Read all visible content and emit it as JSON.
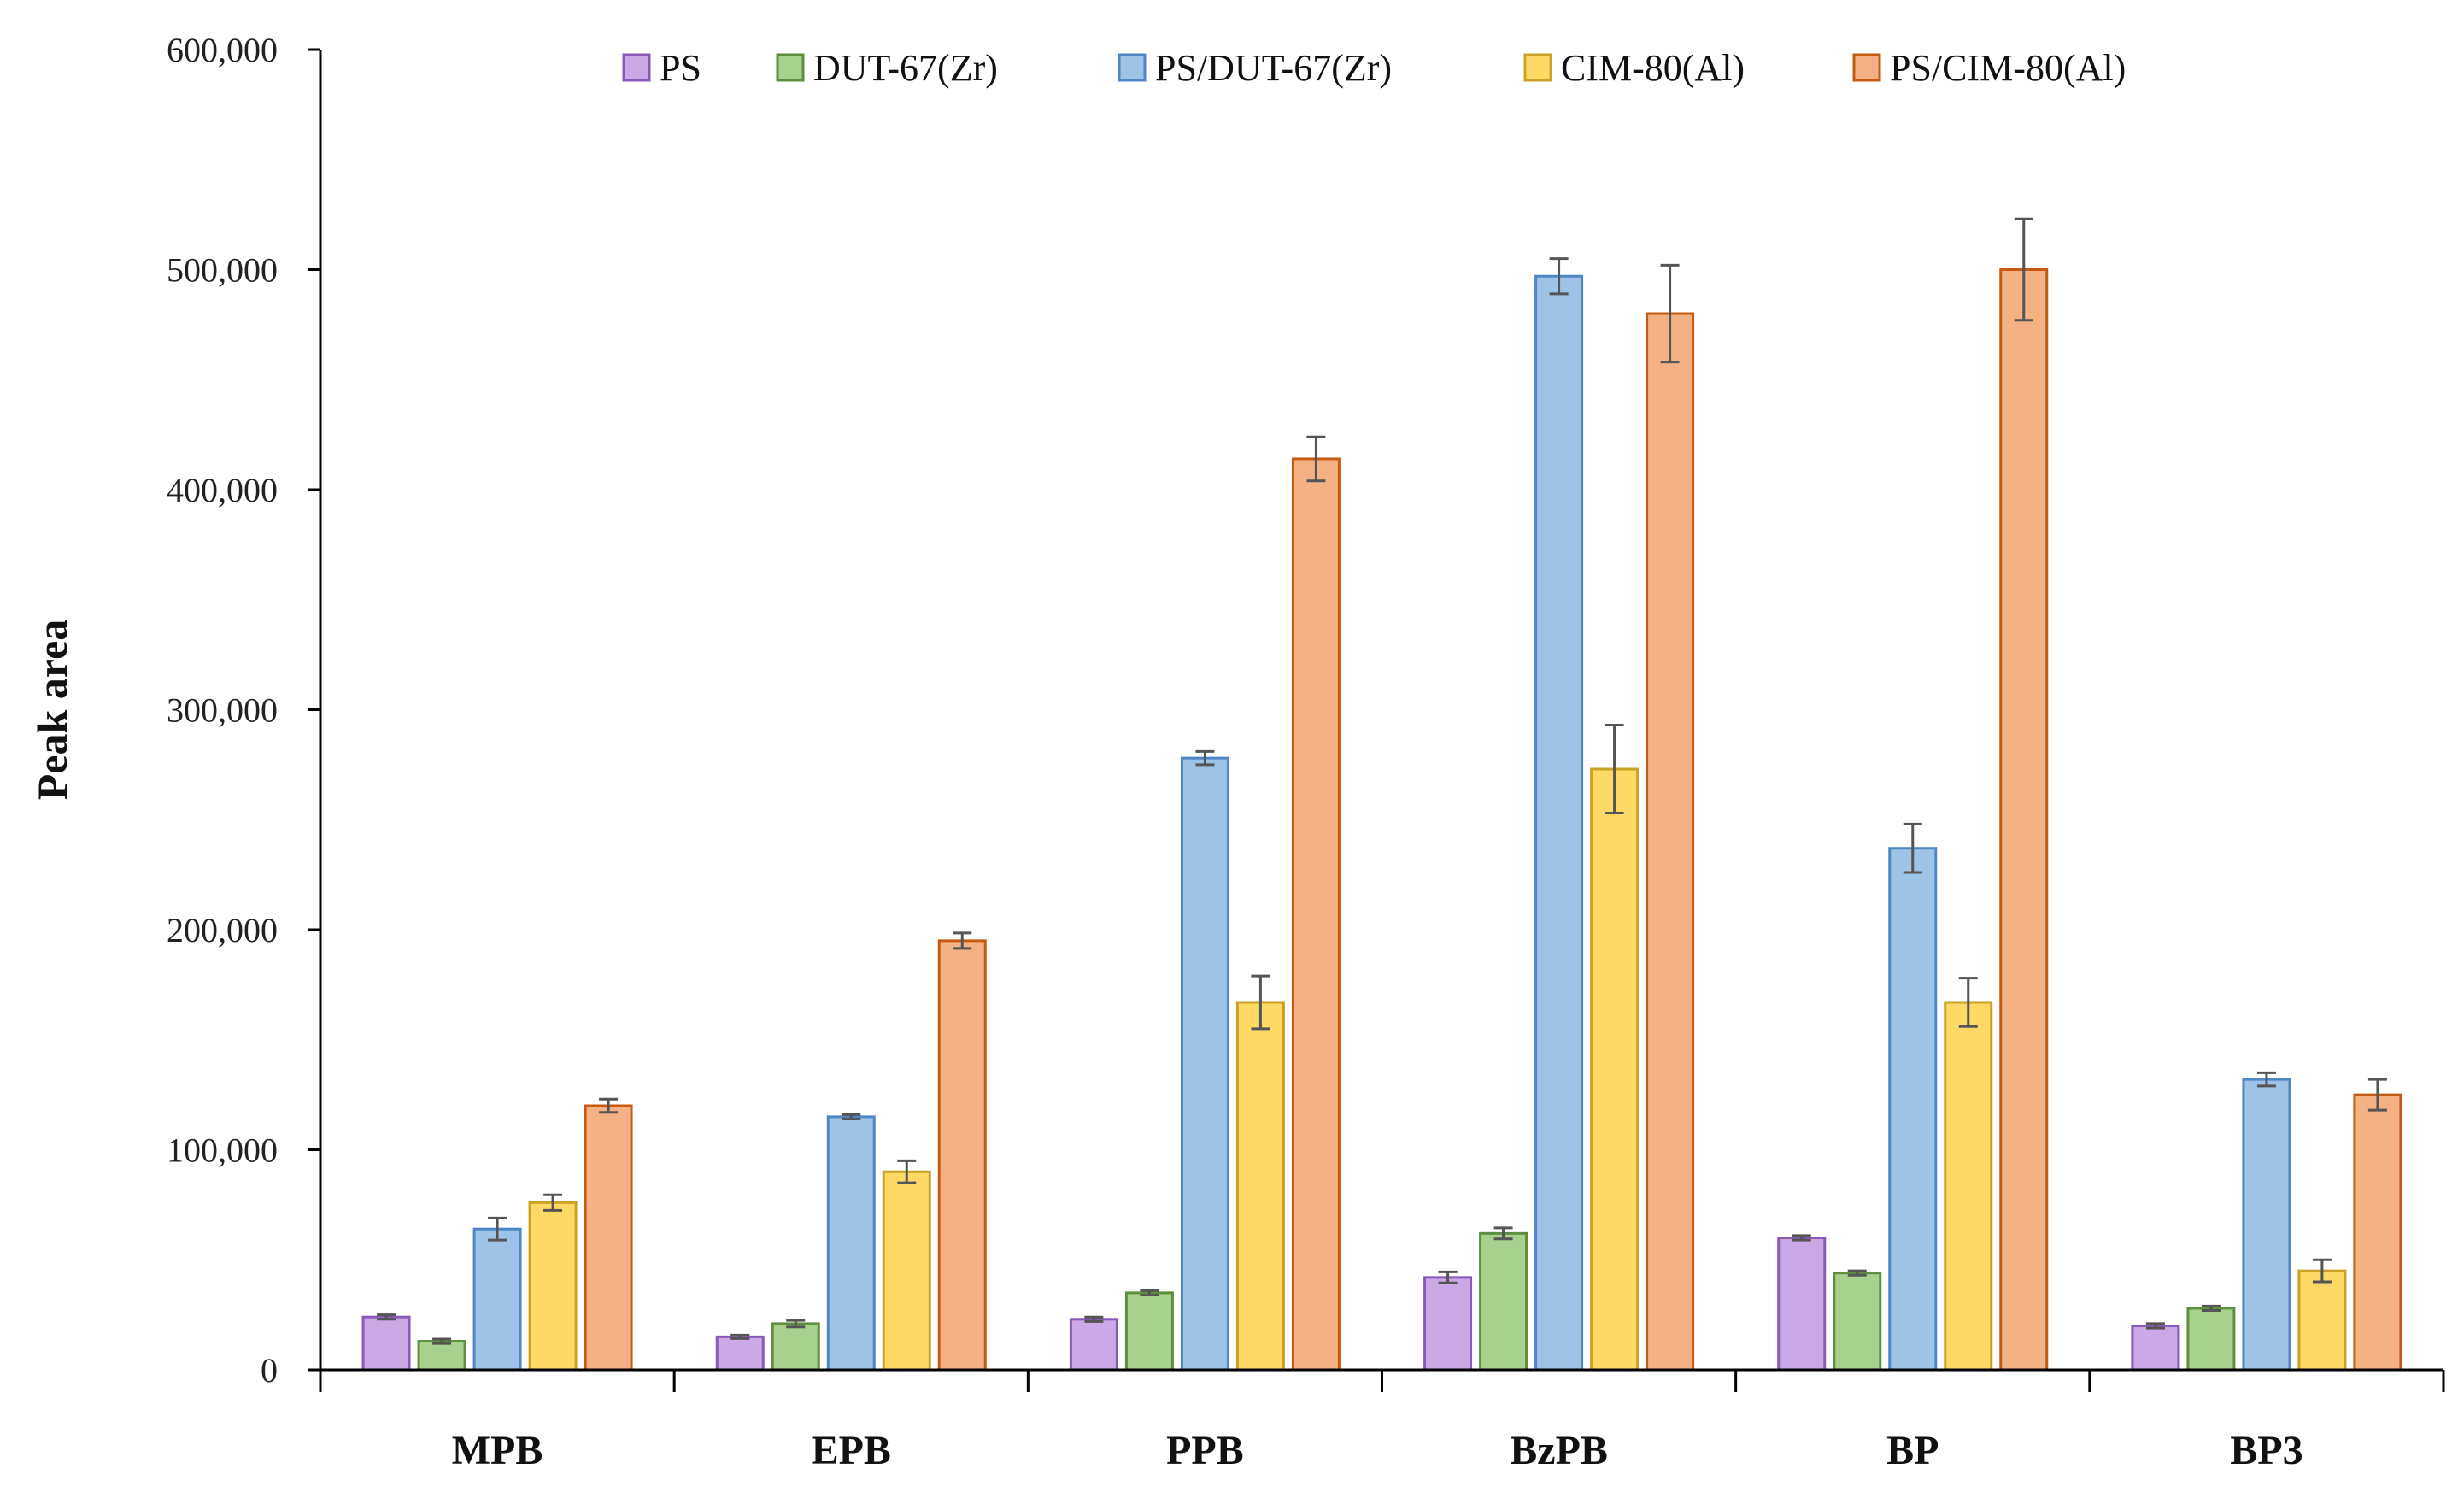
{
  "chart_data": {
    "type": "bar",
    "title": "",
    "xlabel": "",
    "ylabel": "Peak area",
    "ylim": [
      0,
      600000
    ],
    "yticks": [
      0,
      100000,
      200000,
      300000,
      400000,
      500000,
      600000
    ],
    "ytick_labels": [
      "0",
      "100,000",
      "200,000",
      "300,000",
      "400,000",
      "500,000",
      "600,000"
    ],
    "grid": false,
    "legend_position": "top",
    "categories": [
      "MPB",
      "EPB",
      "PPB",
      "BzPB",
      "BP",
      "BP3"
    ],
    "series": [
      {
        "name": "PS",
        "color": "#cba8e6",
        "stroke": "#8a5ab8",
        "values": [
          24000,
          15000,
          23000,
          42000,
          60000,
          20000
        ],
        "errors": [
          1000,
          800,
          1000,
          2500,
          1000,
          1000
        ]
      },
      {
        "name": "DUT-67(Zr)",
        "color": "#a9d18e",
        "stroke": "#5e8f3e",
        "values": [
          13000,
          21000,
          35000,
          62000,
          44000,
          28000
        ],
        "errors": [
          1000,
          1500,
          1000,
          2500,
          1000,
          1000
        ]
      },
      {
        "name": "PS/DUT-67(Zr)",
        "color": "#9dc3e6",
        "stroke": "#4f86c6",
        "values": [
          64000,
          115000,
          278000,
          497000,
          237000,
          132000
        ],
        "errors": [
          5000,
          1000,
          3000,
          8000,
          11000,
          3000
        ]
      },
      {
        "name": "CIM-80(Al)",
        "color": "#ffd966",
        "stroke": "#c9a227",
        "values": [
          76000,
          90000,
          167000,
          273000,
          167000,
          45000
        ],
        "errors": [
          3500,
          5000,
          12000,
          20000,
          11000,
          5000
        ]
      },
      {
        "name": "PS/CIM-80(Al)",
        "color": "#f4b183",
        "stroke": "#c55a11",
        "values": [
          120000,
          195000,
          414000,
          480000,
          500000,
          125000
        ],
        "errors": [
          3000,
          3500,
          10000,
          22000,
          23000,
          7000
        ]
      }
    ]
  }
}
